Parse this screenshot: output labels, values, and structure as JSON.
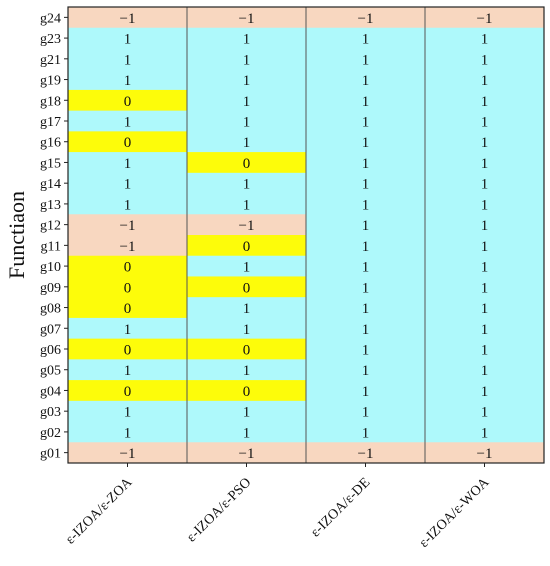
{
  "chart_data": {
    "type": "heatmap",
    "title": "",
    "xlabel": "",
    "ylabel": "Functiaon",
    "columns": [
      "ε-IZOA/ε-ZOA",
      "ε-IZOA/ε-PSO",
      "ε-IZOA/ε-DE",
      "ε-IZOA/ε-WOA"
    ],
    "rows": [
      "g24",
      "g23",
      "g21",
      "g19",
      "g18",
      "g17",
      "g16",
      "g15",
      "g14",
      "g13",
      "g12",
      "g11",
      "g10",
      "g09",
      "g08",
      "g07",
      "g06",
      "g05",
      "g04",
      "g03",
      "g02",
      "g01"
    ],
    "values": [
      [
        "−1",
        "−1",
        "−1",
        "−1"
      ],
      [
        "1",
        "1",
        "1",
        "1"
      ],
      [
        "1",
        "1",
        "1",
        "1"
      ],
      [
        "1",
        "1",
        "1",
        "1"
      ],
      [
        "0",
        "1",
        "1",
        "1"
      ],
      [
        "1",
        "1",
        "1",
        "1"
      ],
      [
        "0",
        "1",
        "1",
        "1"
      ],
      [
        "1",
        "0",
        "1",
        "1"
      ],
      [
        "1",
        "1",
        "1",
        "1"
      ],
      [
        "1",
        "1",
        "1",
        "1"
      ],
      [
        "−1",
        "−1",
        "1",
        "1"
      ],
      [
        "−1",
        "0",
        "1",
        "1"
      ],
      [
        "0",
        "1",
        "1",
        "1"
      ],
      [
        "0",
        "0",
        "1",
        "1"
      ],
      [
        "0",
        "1",
        "1",
        "1"
      ],
      [
        "1",
        "1",
        "1",
        "1"
      ],
      [
        "0",
        "0",
        "1",
        "1"
      ],
      [
        "1",
        "1",
        "1",
        "1"
      ],
      [
        "0",
        "0",
        "1",
        "1"
      ],
      [
        "1",
        "1",
        "1",
        "1"
      ],
      [
        "1",
        "1",
        "1",
        "1"
      ],
      [
        "−1",
        "−1",
        "−1",
        "−1"
      ]
    ],
    "color_map": {
      "1": "#aef9fb",
      "0": "#fdfc0a",
      "−1": "#f8d7c0"
    },
    "grid": "column separators only"
  }
}
